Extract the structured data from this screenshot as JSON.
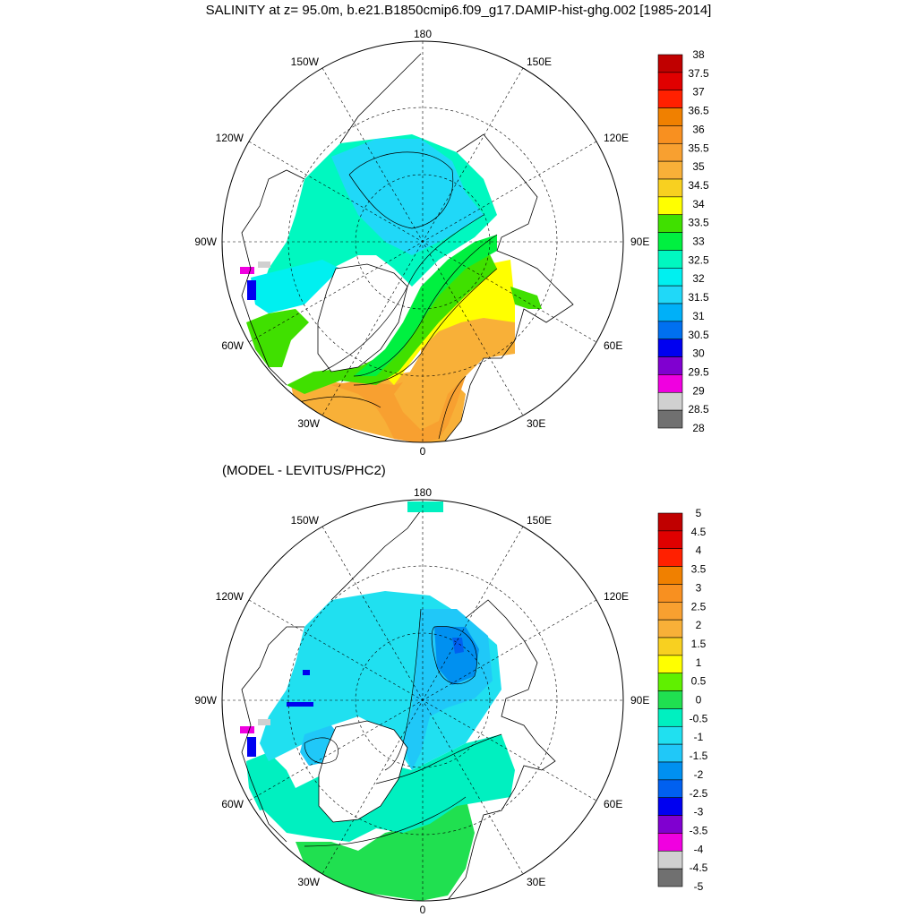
{
  "title": "SALINITY at z=  95.0m, b.e21.B1850cmip6.f09_g17.DAMIP-hist-ghg.002 [1985-2014]",
  "subtitle": "(MODEL - LEVITUS/PHC2)",
  "lon_labels": {
    "top": "180",
    "bottom": "0",
    "left": "90W",
    "right": "90E",
    "w150": "150W",
    "e150": "150E",
    "w120": "120W",
    "e120": "120E",
    "w60": "60W",
    "e60": "60E",
    "w30": "30W",
    "e30": "30E"
  },
  "colorbar_top": {
    "labels": [
      "38",
      "37.5",
      "37",
      "36.5",
      "36",
      "35.5",
      "35",
      "34.5",
      "34",
      "33.5",
      "33",
      "32.5",
      "32",
      "31.5",
      "31",
      "30.5",
      "30",
      "29.5",
      "29",
      "28.5",
      "28"
    ],
    "colors": [
      "#c00000",
      "#e00000",
      "#ff2000",
      "#f08000",
      "#f89020",
      "#f8a030",
      "#f8b038",
      "#f8d020",
      "#ffff00",
      "#40e000",
      "#00f040",
      "#00f8c0",
      "#00f0f0",
      "#20d8f8",
      "#00b0f8",
      "#0070f0",
      "#0000f0",
      "#8000d0",
      "#f000e0",
      "#d0d0d0",
      "#707070"
    ]
  },
  "colorbar_bottom": {
    "labels": [
      "5",
      "4.5",
      "4",
      "3.5",
      "3",
      "2.5",
      "2",
      "1.5",
      "1",
      "0.5",
      "0",
      "-0.5",
      "-1",
      "-1.5",
      "-2",
      "-2.5",
      "-3",
      "-3.5",
      "-4",
      "-4.5",
      "-5"
    ],
    "colors": [
      "#c00000",
      "#e00000",
      "#ff2000",
      "#f08000",
      "#f89020",
      "#f8a030",
      "#f8b038",
      "#f8d020",
      "#ffff00",
      "#60f000",
      "#20e050",
      "#00f0c0",
      "#20e0f0",
      "#20c8f8",
      "#0090f0",
      "#0060f0",
      "#0000f0",
      "#8000d0",
      "#f000e0",
      "#d0d0d0",
      "#707070"
    ]
  }
}
